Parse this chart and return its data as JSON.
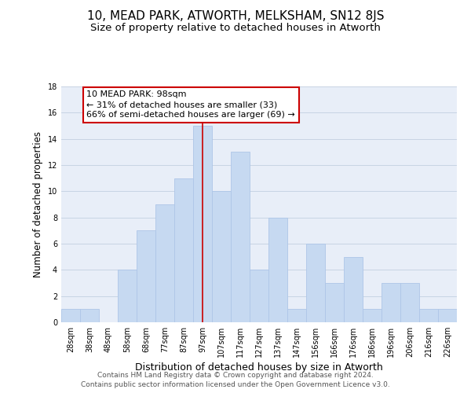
{
  "title1": "10, MEAD PARK, ATWORTH, MELKSHAM, SN12 8JS",
  "title2": "Size of property relative to detached houses in Atworth",
  "xlabel": "Distribution of detached houses by size in Atworth",
  "ylabel": "Number of detached properties",
  "bar_labels": [
    "28sqm",
    "38sqm",
    "48sqm",
    "58sqm",
    "68sqm",
    "77sqm",
    "87sqm",
    "97sqm",
    "107sqm",
    "117sqm",
    "127sqm",
    "137sqm",
    "147sqm",
    "156sqm",
    "166sqm",
    "176sqm",
    "186sqm",
    "196sqm",
    "206sqm",
    "216sqm",
    "226sqm"
  ],
  "bar_values": [
    1,
    1,
    0,
    4,
    7,
    9,
    11,
    15,
    10,
    13,
    4,
    8,
    1,
    6,
    3,
    5,
    1,
    3,
    3,
    1,
    1
  ],
  "bar_color": "#c6d9f1",
  "bar_edge_color": "#aec6e8",
  "highlight_index": 7,
  "highlight_line_color": "#cc0000",
  "ylim": [
    0,
    18
  ],
  "yticks": [
    0,
    2,
    4,
    6,
    8,
    10,
    12,
    14,
    16,
    18
  ],
  "annotation_title": "10 MEAD PARK: 98sqm",
  "annotation_line1": "← 31% of detached houses are smaller (33)",
  "annotation_line2": "66% of semi-detached houses are larger (69) →",
  "annotation_box_color": "#ffffff",
  "annotation_box_edge": "#cc0000",
  "footer1": "Contains HM Land Registry data © Crown copyright and database right 2024.",
  "footer2": "Contains public sector information licensed under the Open Government Licence v3.0.",
  "background_color": "#ffffff",
  "plot_bg_color": "#e8eef8",
  "grid_color": "#c8d4e4",
  "title1_fontsize": 11,
  "title2_fontsize": 9.5,
  "xlabel_fontsize": 9,
  "ylabel_fontsize": 8.5,
  "tick_fontsize": 7,
  "footer_fontsize": 6.5,
  "annotation_fontsize": 8
}
